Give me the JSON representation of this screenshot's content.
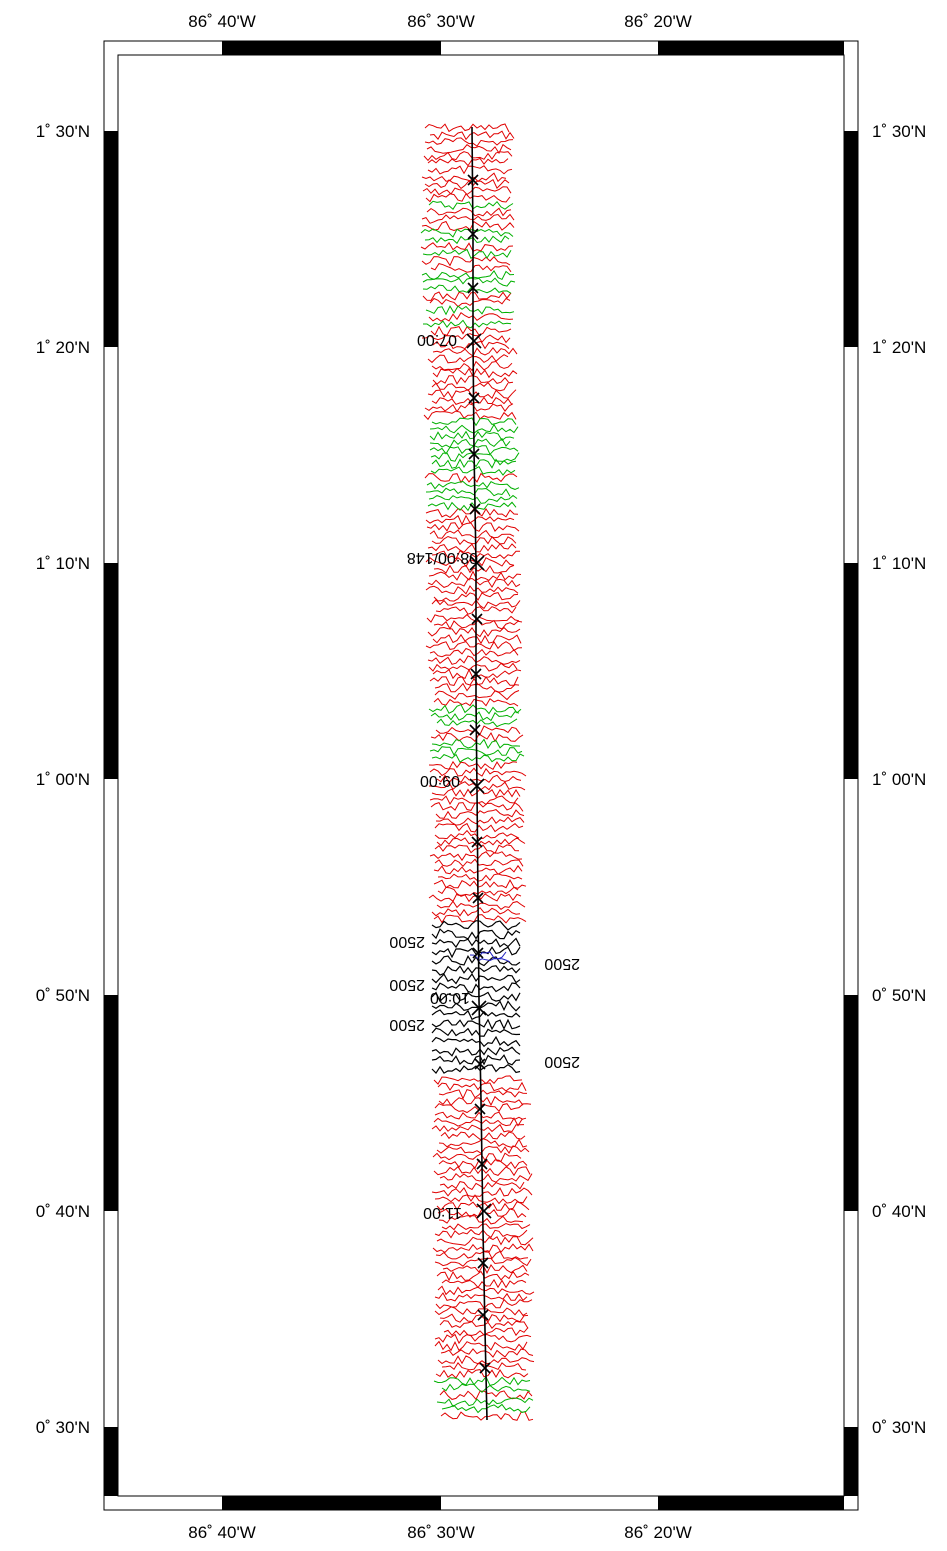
{
  "map": {
    "lon_labels": [
      "86˚ 40'W",
      "86˚ 30'W",
      "86˚ 20'W"
    ],
    "lat_labels": [
      "1˚ 30'N",
      "1˚ 20'N",
      "1˚ 10'N",
      "1˚ 00'N",
      "0˚ 50'N",
      "0˚ 40'N",
      "0˚ 30'N"
    ],
    "time_labels": [
      "07:00",
      "08:00/148",
      "09:00",
      "10:00",
      "11:00"
    ],
    "depth_labels": [
      "2500",
      "2500",
      "2500",
      "2500",
      "2500"
    ],
    "colors": {
      "contour_red": "#e00000",
      "contour_green": "#00b000",
      "contour_blue": "#2020c0",
      "contour_black": "#000000",
      "track": "#000000",
      "frame": "#000000"
    }
  }
}
